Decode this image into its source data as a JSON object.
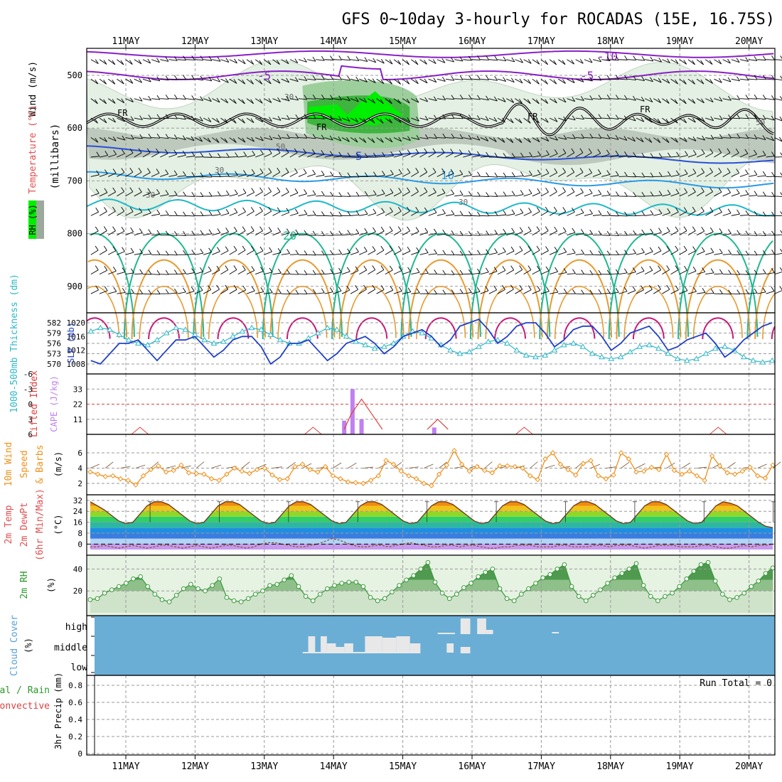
{
  "title": "GFS 0~10day 3-hourly for ROCADAS (15E, 16.75S)",
  "dates": [
    "11MAY",
    "12MAY",
    "13MAY",
    "14MAY",
    "15MAY",
    "16MAY",
    "17MAY",
    "18MAY",
    "19MAY",
    "20MAY"
  ],
  "colors": {
    "grid": "#9a9a9a",
    "rh_light": "#e3f0e3",
    "rh_mid": "#9dcf9d",
    "rh_dark": "#3fb43f",
    "rh_bright": "#00ee00",
    "rh_gray": "#9ea99e",
    "temp_purple": "#8a1fc4",
    "temp_blue": "#2a4fd6",
    "temp_lightblue": "#2b9ae6",
    "temp_cyan": "#20b8c8",
    "temp_teal": "#20b890",
    "temp_orange": "#e89a30",
    "temp_red": "#d04020",
    "temp_magenta": "#c81878",
    "slp": "#2040c8",
    "thickness": "#30b8c8",
    "cape": "#c080f0",
    "lifted": "#e04040",
    "wind_speed": "#f0901a",
    "barb_brown": "#7a5230",
    "rh2m_line": "#3a9a3a",
    "rh2m_fill": "#e6f2e2",
    "cloud_bg": "#6aaed6",
    "cloud_fill": "#e8e8e8"
  },
  "panels": {
    "upper": {
      "label_wind": "Wind (m/s)",
      "label_temp": "Temperature (°C)",
      "label_rh": "RH (%)",
      "label_mb": "(millibars)",
      "contour_labels": {
        "fr": "FR",
        "m10": "-10",
        "m5": "-5",
        "p5": "5",
        "p10": "10",
        "p20": "20",
        "rh30": "30",
        "rh50": "50"
      }
    },
    "slp": {
      "label_thick": "1000-500mb Thickness (dm)",
      "label_slp": "SLP (mb)"
    },
    "cape": {
      "label_li": "Lifted Index",
      "label_cape": "CAPE (J/kg)"
    },
    "wind10": {
      "label1": "10m Wind",
      "label2": "Speed",
      "label3": "& Barbs",
      "label_unit": "(m/s)"
    },
    "temp2m": {
      "label1": "2m Temp",
      "label2": "2m DewPt",
      "label3": "(6hr Min/Max)",
      "label_unit": "(°C)"
    },
    "rh2m": {
      "label1": "2m RH",
      "label_unit": "(%)"
    },
    "cloud": {
      "label1": "Cloud Cover",
      "label_unit": "(%)",
      "levels": [
        "high",
        "middle",
        "low"
      ]
    },
    "precip": {
      "label1": "Total / Rain",
      "label2": "Convective",
      "label3": "3hr Precip (mm)",
      "run_total": "Run Total = 0"
    }
  },
  "chart_data": [
    {
      "type": "heatmap",
      "panel": "Vertical cross-section (RH shading, temperature contours, wind barbs)",
      "y_ticks_mb": [
        500,
        600,
        700,
        800,
        900
      ],
      "ylim": [
        1000,
        450
      ],
      "x": [
        "11MAY",
        "12MAY",
        "13MAY",
        "14MAY",
        "15MAY",
        "16MAY",
        "17MAY",
        "18MAY",
        "19MAY",
        "20MAY"
      ],
      "contour_levels_temp_C": [
        -10,
        -5,
        0,
        5,
        10,
        20
      ],
      "contour_levels_rh_pct": [
        30,
        50,
        70,
        90
      ]
    },
    {
      "type": "line",
      "panel": "SLP / Thickness",
      "y_ticks_left": [
        570,
        573,
        576,
        579,
        582
      ],
      "y_ticks_right": [
        1008,
        1012,
        1016,
        1020
      ],
      "series": [
        {
          "name": "SLP (mb)",
          "axis": "right",
          "values": [
            1009,
            1008,
            1011,
            1014,
            1014,
            1015,
            1012,
            1009,
            1012,
            1015,
            1015,
            1016,
            1013,
            1010,
            1012,
            1015,
            1016,
            1016,
            1013,
            1008,
            1010,
            1014,
            1014,
            1015,
            1012,
            1009,
            1011,
            1014,
            1015,
            1016,
            1014,
            1011,
            1013,
            1016,
            1017,
            1018,
            1016,
            1013,
            1015,
            1019,
            1020,
            1021,
            1018,
            1014,
            1016,
            1019,
            1020,
            1020,
            1017,
            1013,
            1015,
            1018,
            1019,
            1019,
            1016,
            1012,
            1014,
            1017,
            1018,
            1019,
            1016,
            1012,
            1013,
            1015,
            1016,
            1017,
            1014,
            1010,
            1012,
            1015,
            1017,
            1019,
            1020
          ]
        },
        {
          "name": "1000-500mb Thickness (dm)",
          "axis": "left",
          "values": [
            579.5,
            580.5,
            580,
            578.5,
            577,
            576,
            575.5,
            577,
            579,
            580.5,
            580,
            578.5,
            577,
            576,
            576.5,
            578,
            579.5,
            580.5,
            580,
            578.5,
            577,
            576,
            576,
            577.5,
            579,
            580.5,
            580,
            578,
            576.5,
            575.5,
            574.5,
            575,
            576,
            578,
            579.5,
            579,
            577.5,
            575.5,
            574,
            573,
            573.5,
            575,
            576.5,
            577,
            576,
            574,
            572.5,
            572,
            572.5,
            574,
            575.5,
            576,
            575,
            573,
            572,
            571.5,
            572,
            573.5,
            575,
            575.5,
            574.5,
            573,
            571.5,
            571,
            571.5,
            573,
            574.5,
            575,
            574,
            572,
            571,
            570.5,
            571
          ]
        }
      ]
    },
    {
      "type": "bar",
      "panel": "CAPE / Lifted Index",
      "y_ticks_cape": [
        11,
        22,
        33
      ],
      "y_ticks_li": [
        -6,
        -3,
        0,
        3,
        6
      ],
      "series": [
        {
          "name": "CAPE (J/kg)",
          "points": [
            [
              3.0,
              10
            ],
            [
              3.12,
              33
            ],
            [
              3.25,
              11
            ],
            [
              4.3,
              5
            ]
          ]
        },
        {
          "name": "Lifted Index",
          "points": [
            [
              3.0,
              5
            ],
            [
              3.1,
              2
            ],
            [
              3.25,
              -1
            ],
            [
              3.4,
              2
            ],
            [
              3.55,
              5
            ],
            [
              4.2,
              5
            ],
            [
              4.35,
              3
            ],
            [
              4.5,
              5
            ]
          ]
        }
      ]
    },
    {
      "type": "line",
      "panel": "10m Wind Speed (m/s)",
      "y_ticks": [
        2,
        4,
        6
      ],
      "values": [
        3.5,
        3.2,
        2.9,
        3.0,
        2.6,
        2.4,
        1.8,
        3.0,
        3.8,
        4.3,
        3.5,
        3.7,
        4.4,
        3.4,
        3.3,
        3.2,
        2.6,
        2.4,
        3.2,
        4.0,
        3.6,
        3.3,
        3.8,
        4.0,
        3.1,
        2.5,
        2.6,
        4.2,
        4.5,
        3.8,
        3.5,
        4.2,
        3.0,
        2.6,
        2.2,
        2.1,
        2.0,
        2.4,
        3.0,
        5.0,
        4.5,
        3.6,
        3.0,
        2.6,
        2.0,
        1.7,
        3.2,
        4.4,
        6.3,
        4.5,
        3.6,
        4.2,
        3.7,
        3.4,
        4.3,
        4.3,
        4.2,
        4.0,
        3.0,
        2.5,
        5.2,
        6.0,
        4.5,
        3.8,
        3.1,
        4.6,
        5.0,
        3.0,
        2.6,
        3.1,
        6.0,
        5.2,
        3.5,
        3.6,
        4.1,
        3.8,
        5.8,
        3.7,
        3.2,
        3.6,
        3.0,
        2.4,
        5.6,
        4.3,
        3.4,
        3.2,
        3.6,
        4.1,
        3.0,
        2.7,
        4.4
      ]
    },
    {
      "type": "area",
      "panel": "2m Temp / DewPt (6hr Min/Max)",
      "y_ticks": [
        0,
        8,
        16,
        24,
        32
      ],
      "series": [
        {
          "name": "2m Temp",
          "values": [
            31,
            28,
            25,
            21,
            17,
            15,
            16,
            22,
            28,
            31,
            31,
            29,
            25,
            21,
            17,
            15,
            16,
            22,
            28,
            31,
            31,
            29,
            25,
            21,
            17,
            15,
            16,
            22,
            28,
            31,
            31,
            29,
            25,
            21,
            17,
            15,
            16,
            22,
            28,
            31,
            31,
            29,
            25,
            21,
            17,
            15,
            16,
            22,
            28,
            31,
            31,
            29,
            25,
            21,
            17,
            15,
            16,
            22,
            28,
            31,
            31,
            29,
            25,
            21,
            17,
            15,
            16,
            22,
            28,
            31,
            31,
            29,
            25,
            21,
            17,
            15,
            16,
            22,
            28,
            31,
            31,
            29,
            25,
            21,
            17,
            15,
            16,
            22,
            28,
            31,
            30,
            28,
            24,
            20,
            16,
            13,
            12
          ]
        },
        {
          "name": "2m DewPt",
          "values": [
            -2,
            -2,
            -1,
            -2,
            -3,
            -2,
            -1,
            -2,
            -3,
            -2,
            -1,
            -1,
            -2,
            -3,
            -2,
            -1,
            -2,
            -3,
            -2,
            -1,
            -1,
            -2,
            -3,
            -2,
            0,
            1,
            1,
            0,
            -1,
            -2,
            -2,
            -1,
            0,
            2,
            4,
            3,
            1,
            -1,
            -2,
            -2,
            -1,
            -1,
            -2,
            -1,
            0,
            1,
            0,
            -1,
            -2,
            -2,
            -1,
            -1,
            -2,
            -1,
            -1,
            -2,
            -3,
            -3,
            -2,
            -2,
            -1,
            -1,
            -1,
            -2,
            -2,
            -2,
            -1,
            -1,
            -2,
            -2,
            -2,
            -1,
            -1,
            -2,
            -1,
            -1,
            -1,
            -2,
            -3,
            -2,
            -1,
            -1,
            -1,
            -2,
            -2,
            -2,
            -1,
            -1,
            -2,
            -3,
            -3,
            -2,
            -1,
            -2,
            -1,
            -1,
            0
          ]
        }
      ]
    },
    {
      "type": "area",
      "panel": "2m RH (%)",
      "y_ticks": [
        20,
        40
      ],
      "values": [
        12,
        13,
        18,
        21,
        24,
        27,
        31,
        33,
        24,
        17,
        12,
        10,
        16,
        22,
        26,
        22,
        20,
        25,
        31,
        14,
        11,
        10,
        13,
        17,
        20,
        25,
        26,
        30,
        34,
        24,
        15,
        11,
        17,
        22,
        25,
        27,
        28,
        28,
        24,
        14,
        11,
        13,
        19,
        25,
        30,
        34,
        40,
        46,
        28,
        18,
        13,
        17,
        23,
        27,
        33,
        37,
        40,
        22,
        13,
        11,
        17,
        22,
        27,
        32,
        35,
        40,
        44,
        24,
        15,
        11,
        16,
        21,
        27,
        32,
        36,
        40,
        45,
        25,
        15,
        11,
        15,
        18,
        24,
        31,
        38,
        44,
        46,
        29,
        17,
        12,
        14,
        18,
        24,
        29,
        36,
        41
      ]
    },
    {
      "type": "bar",
      "panel": "Cloud Cover (%)",
      "levels": [
        "high",
        "middle",
        "low"
      ]
    },
    {
      "type": "bar",
      "panel": "3hr Precip (mm)",
      "y_ticks": [
        0,
        0.2,
        0.4,
        0.6,
        0.8
      ],
      "values": []
    }
  ]
}
